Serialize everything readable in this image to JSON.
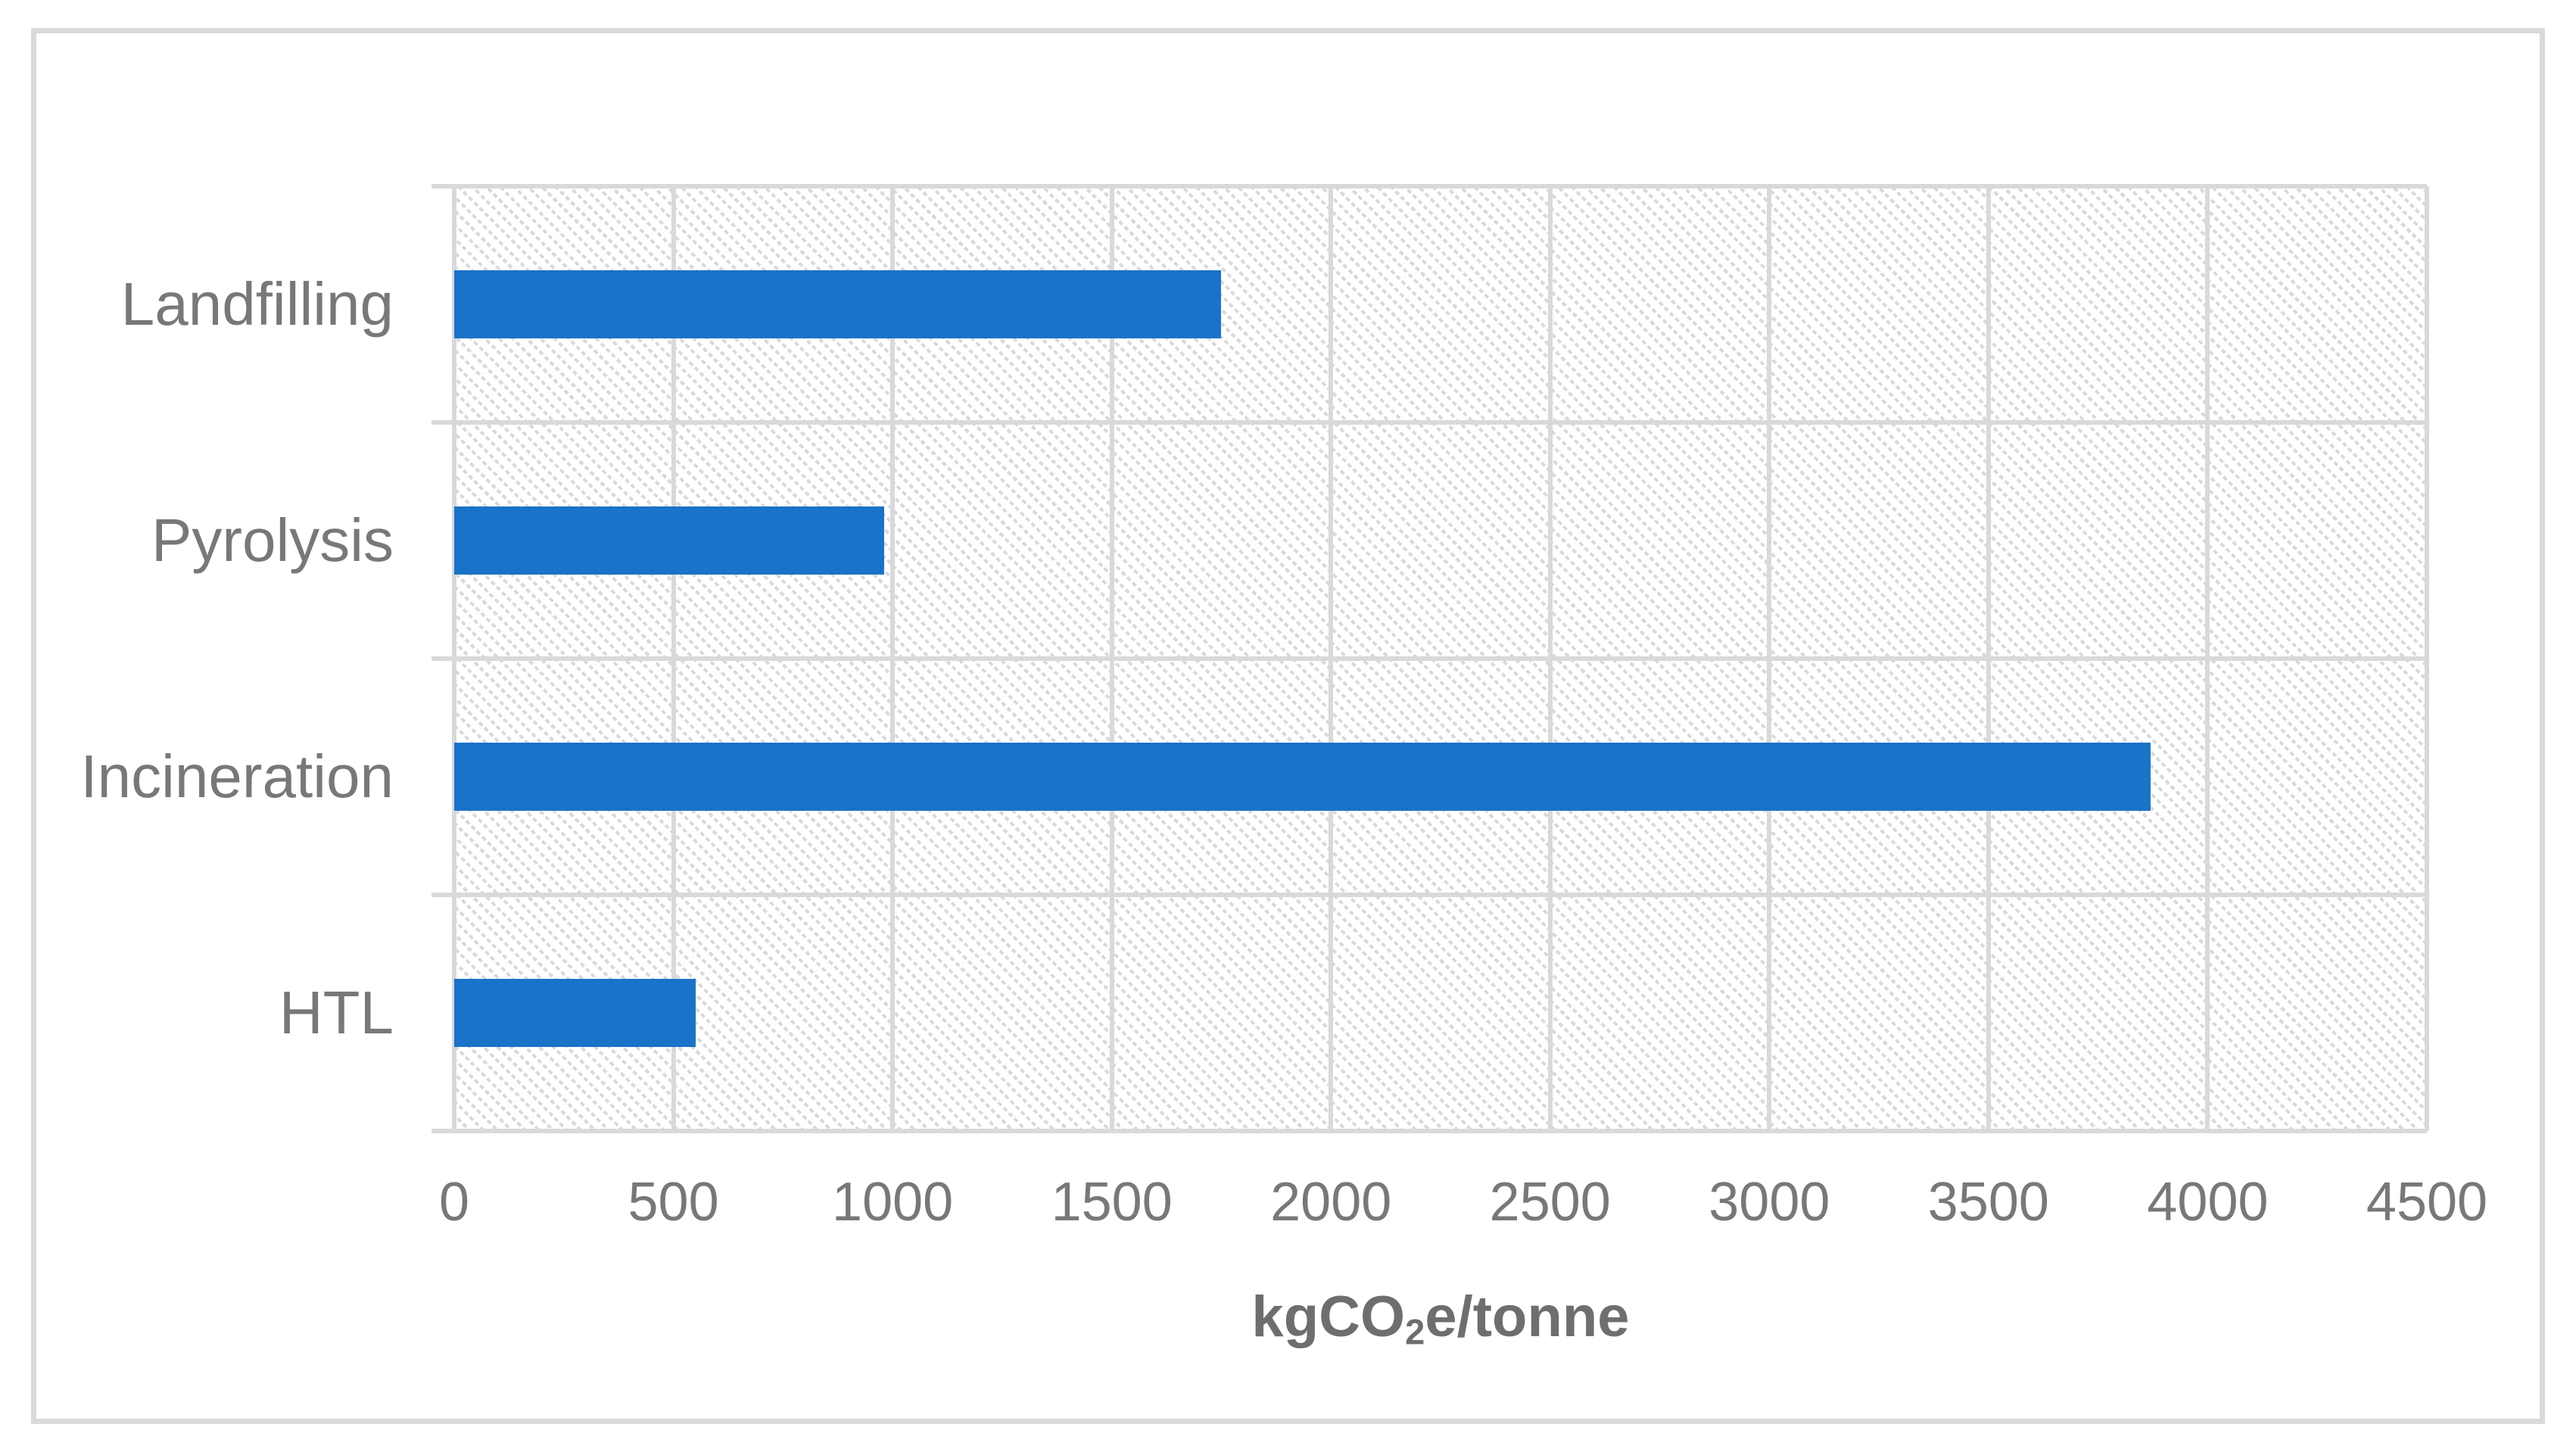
{
  "chart_data": {
    "type": "bar",
    "orientation": "horizontal",
    "title": "",
    "categories": [
      "Landfilling",
      "Pyrolysis",
      "Incineration",
      "HTL"
    ],
    "values": [
      1750,
      980,
      3870,
      550
    ],
    "xlabel": "kgCO2e/tonne",
    "xlabel_parts": {
      "pre": "kgCO",
      "sub": "2",
      "post": "e/tonne"
    },
    "xticks": [
      0,
      500,
      1000,
      1500,
      2000,
      2500,
      3000,
      3500,
      4000,
      4500
    ],
    "xlim": [
      0,
      4500
    ],
    "grid": true,
    "legend": "none",
    "bar_color": "#1973c8",
    "grid_color": "#d9d9d9",
    "text_color": "#787878",
    "plot_background": "light-downward-diagonal-hatch"
  }
}
